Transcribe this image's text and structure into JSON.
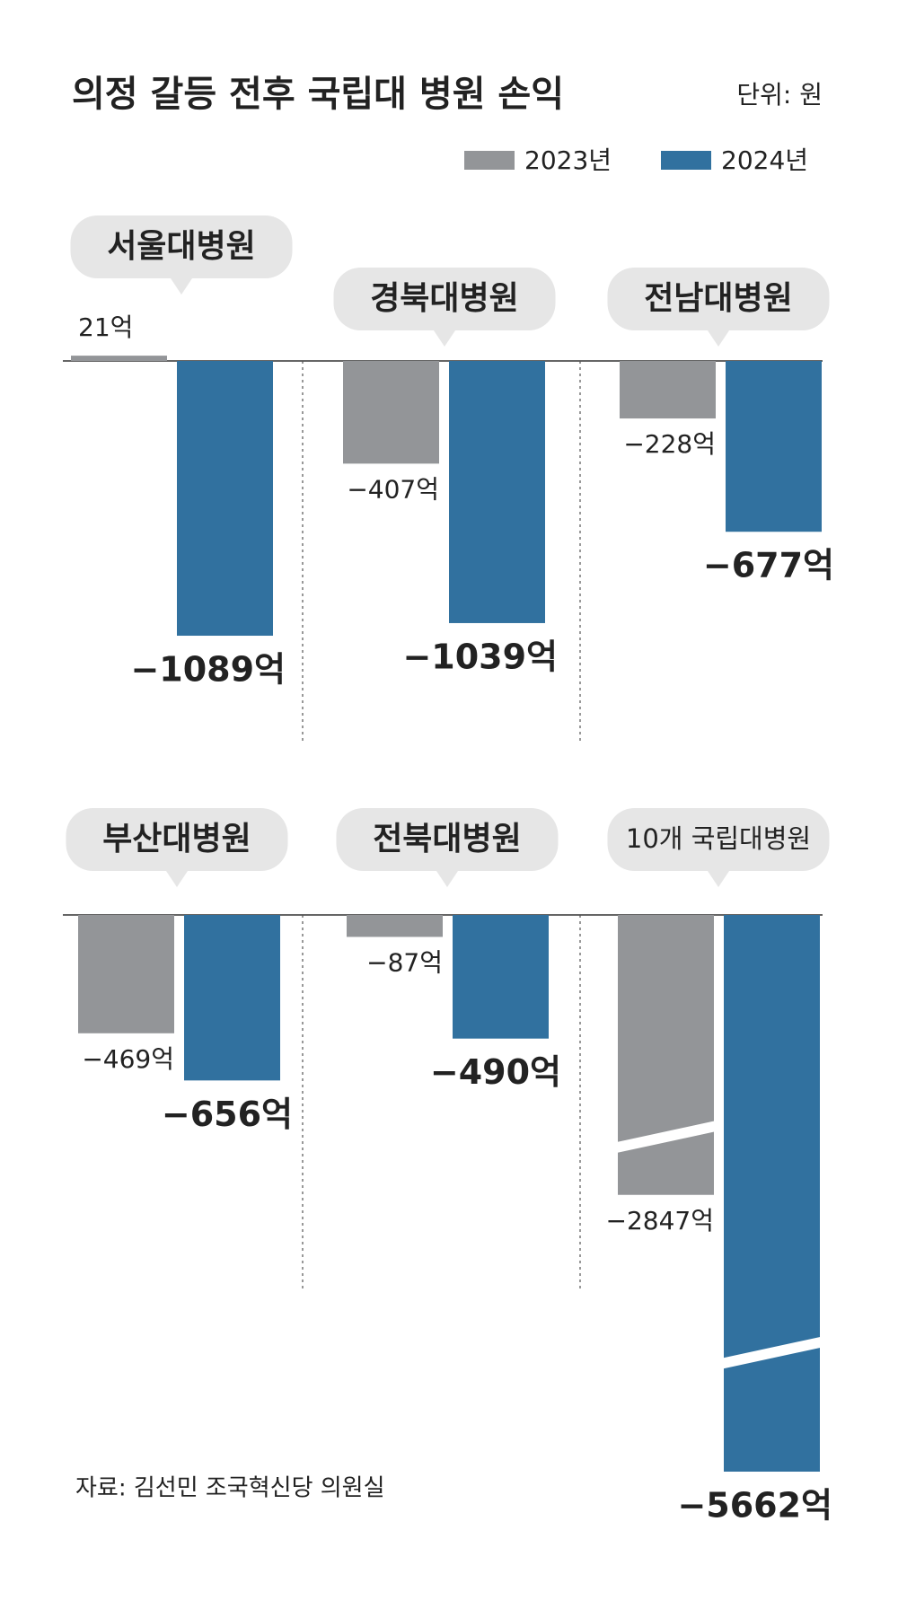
{
  "chart_data": {
    "type": "bar",
    "title": "의정 갈등 전후 국립대 병원 손익",
    "subtitle": "단위: 원",
    "source": "자료: 김선민 조국혁신당 의원실",
    "categories": [
      "서울대병원",
      "경북대병원",
      "전남대병원",
      "부산대병원",
      "전북대병원",
      "10개 국립대병원"
    ],
    "series": [
      {
        "name": "2023년",
        "color": "#939598",
        "values": [
          21,
          -407,
          -228,
          -469,
          -87,
          -2847
        ],
        "value_labels": [
          "21억",
          "−407억",
          "−228억",
          "−469억",
          "−87억",
          "−2847억"
        ]
      },
      {
        "name": "2024년",
        "color": "#31719f",
        "values": [
          -1089,
          -1039,
          -677,
          -656,
          -490,
          -5662
        ],
        "value_labels": [
          "−1089억",
          "−1039억",
          "−677억",
          "−656억",
          "−490억",
          "−5662억"
        ]
      }
    ]
  }
}
